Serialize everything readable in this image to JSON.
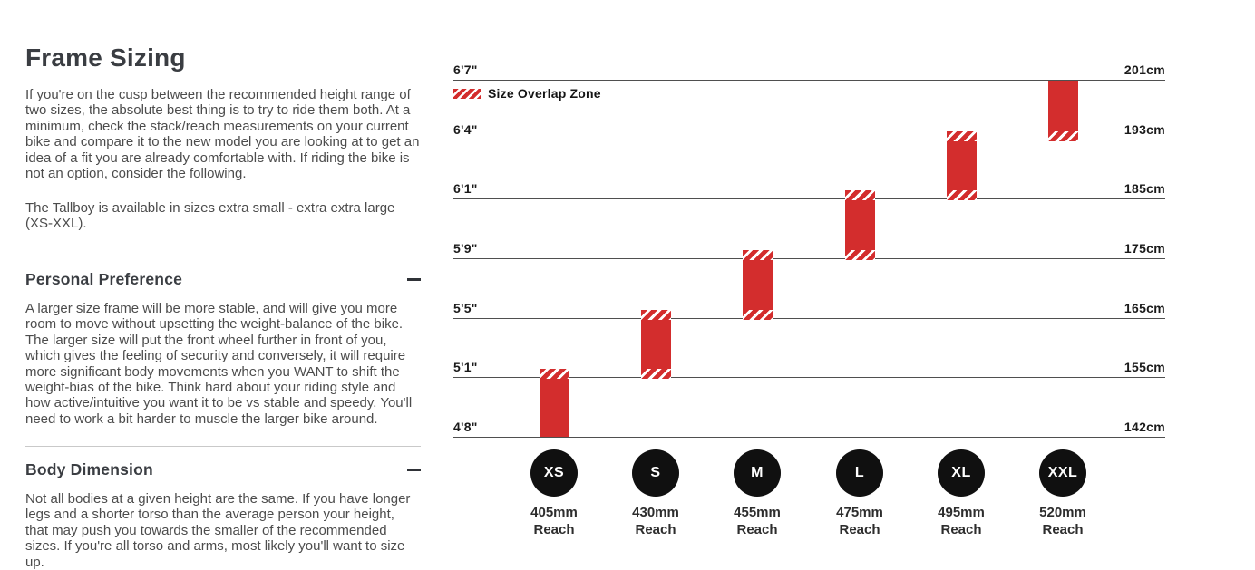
{
  "left_panel": {
    "title": "Frame Sizing",
    "intro": "If you're on the cusp between the recommended height range of two sizes, the absolute best thing is to try to ride them both. At a minimum, check the stack/reach measurements on your current bike and compare it to the new model you are looking at to get an idea of a fit you are already comfortable with. If riding the bike is not an option, consider the following.",
    "availability": "The Tallboy is available in sizes extra small - extra extra large (XS-XXL).",
    "sections": [
      {
        "heading": "Personal Preference",
        "toggle_state": "expanded",
        "body": "A larger size frame will be more stable, and will give you more room to move without upsetting the weight-balance of the bike. The larger size will put the front wheel further in front of you, which gives the feeling of security and conversely, it will require more significant body movements when you WANT to shift the weight-bias of the bike. Think hard about your riding style and how active/intuitive you want it to be vs stable and speedy. You'll need to work a bit harder to muscle the larger bike around."
      },
      {
        "heading": "Body Dimension",
        "toggle_state": "expanded",
        "body": "Not all bodies at a given height are the same. If you have longer legs and a shorter torso than the average person your height, that may push you towards the smaller of the recommended sizes. If you're all torso and arms, most likely you'll want to size up."
      }
    ]
  },
  "chart_data": {
    "type": "bar",
    "title": "",
    "legend": [
      {
        "label": "Size Overlap Zone",
        "swatch": "red-white-hatch"
      }
    ],
    "reach_unit_label": "Reach",
    "rows": [
      {
        "ft": "6'7\"",
        "cm": "201cm"
      },
      {
        "ft": "6'4\"",
        "cm": "193cm"
      },
      {
        "ft": "6'1\"",
        "cm": "185cm"
      },
      {
        "ft": "5'9\"",
        "cm": "175cm"
      },
      {
        "ft": "5'5\"",
        "cm": "165cm"
      },
      {
        "ft": "5'1\"",
        "cm": "155cm"
      },
      {
        "ft": "4'8\"",
        "cm": "142cm"
      }
    ],
    "series": [
      {
        "name": "XS",
        "reach": "405mm",
        "height_range_ft": [
          "4'8\"",
          "5'1\""
        ],
        "height_range_cm": [
          142,
          155
        ],
        "top_row": 5,
        "bottom_row": 6,
        "overlap_top": true,
        "overlap_bottom": false
      },
      {
        "name": "S",
        "reach": "430mm",
        "height_range_ft": [
          "5'1\"",
          "5'5\""
        ],
        "height_range_cm": [
          155,
          165
        ],
        "top_row": 4,
        "bottom_row": 5,
        "overlap_top": true,
        "overlap_bottom": true
      },
      {
        "name": "M",
        "reach": "455mm",
        "height_range_ft": [
          "5'5\"",
          "5'9\""
        ],
        "height_range_cm": [
          165,
          175
        ],
        "top_row": 3,
        "bottom_row": 4,
        "overlap_top": true,
        "overlap_bottom": true
      },
      {
        "name": "L",
        "reach": "475mm",
        "height_range_ft": [
          "5'9\"",
          "6'1\""
        ],
        "height_range_cm": [
          175,
          185
        ],
        "top_row": 2,
        "bottom_row": 3,
        "overlap_top": true,
        "overlap_bottom": true
      },
      {
        "name": "XL",
        "reach": "495mm",
        "height_range_ft": [
          "6'1\"",
          "6'4\""
        ],
        "height_range_cm": [
          185,
          193
        ],
        "top_row": 1,
        "bottom_row": 2,
        "overlap_top": true,
        "overlap_bottom": true
      },
      {
        "name": "XXL",
        "reach": "520mm",
        "height_range_ft": [
          "6'4\"",
          "6'7\""
        ],
        "height_range_cm": [
          193,
          201
        ],
        "top_row": 0,
        "bottom_row": 1,
        "overlap_top": false,
        "overlap_bottom": true
      }
    ],
    "colors": {
      "bar": "#d32d2d",
      "circle": "#101010",
      "gridline": "#4f4f4f",
      "label_text": "#1b1b1b"
    },
    "layout_hints": {
      "left_axis": "height_feet_inches",
      "right_axis": "height_cm",
      "legend_position": "top-left",
      "grid": "horizontal-lines"
    }
  }
}
